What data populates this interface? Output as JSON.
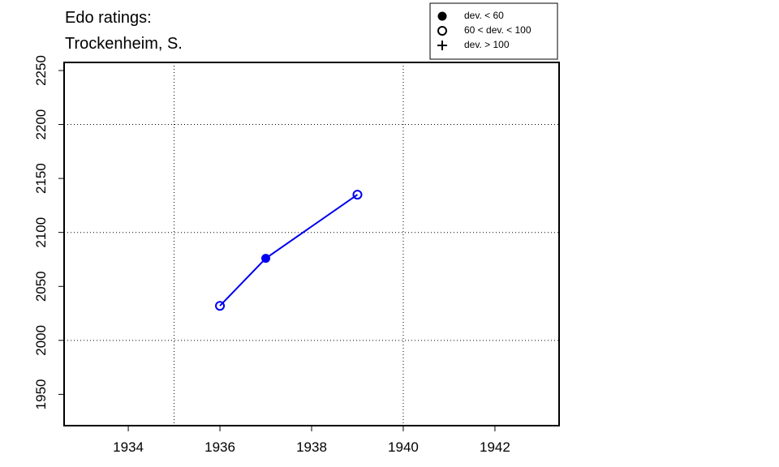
{
  "chart_data": {
    "type": "line",
    "title": [
      "Edo ratings:",
      "Trockenheim, S."
    ],
    "x": [
      1936,
      1937,
      1939
    ],
    "series": [
      {
        "color": "#0000ee",
        "values": [
          2032,
          2076,
          2135
        ],
        "symbols": [
          "open",
          "filled",
          "open"
        ]
      }
    ],
    "xlim": [
      1932.6,
      1943.4
    ],
    "xticks": [
      1934,
      1936,
      1938,
      1940,
      1942
    ],
    "ylim": [
      1921,
      2257.5
    ],
    "yticks": [
      1950,
      2000,
      2050,
      2100,
      2150,
      2200,
      2250
    ],
    "xgrid": [
      1935,
      1940
    ],
    "ygrid": [
      2000,
      2100,
      2200
    ],
    "legend": [
      {
        "label": "dev. < 60",
        "symbol": "filled"
      },
      {
        "label": "60 < dev. < 100",
        "symbol": "open"
      },
      {
        "label": "dev. > 100",
        "symbol": "plus"
      }
    ]
  }
}
